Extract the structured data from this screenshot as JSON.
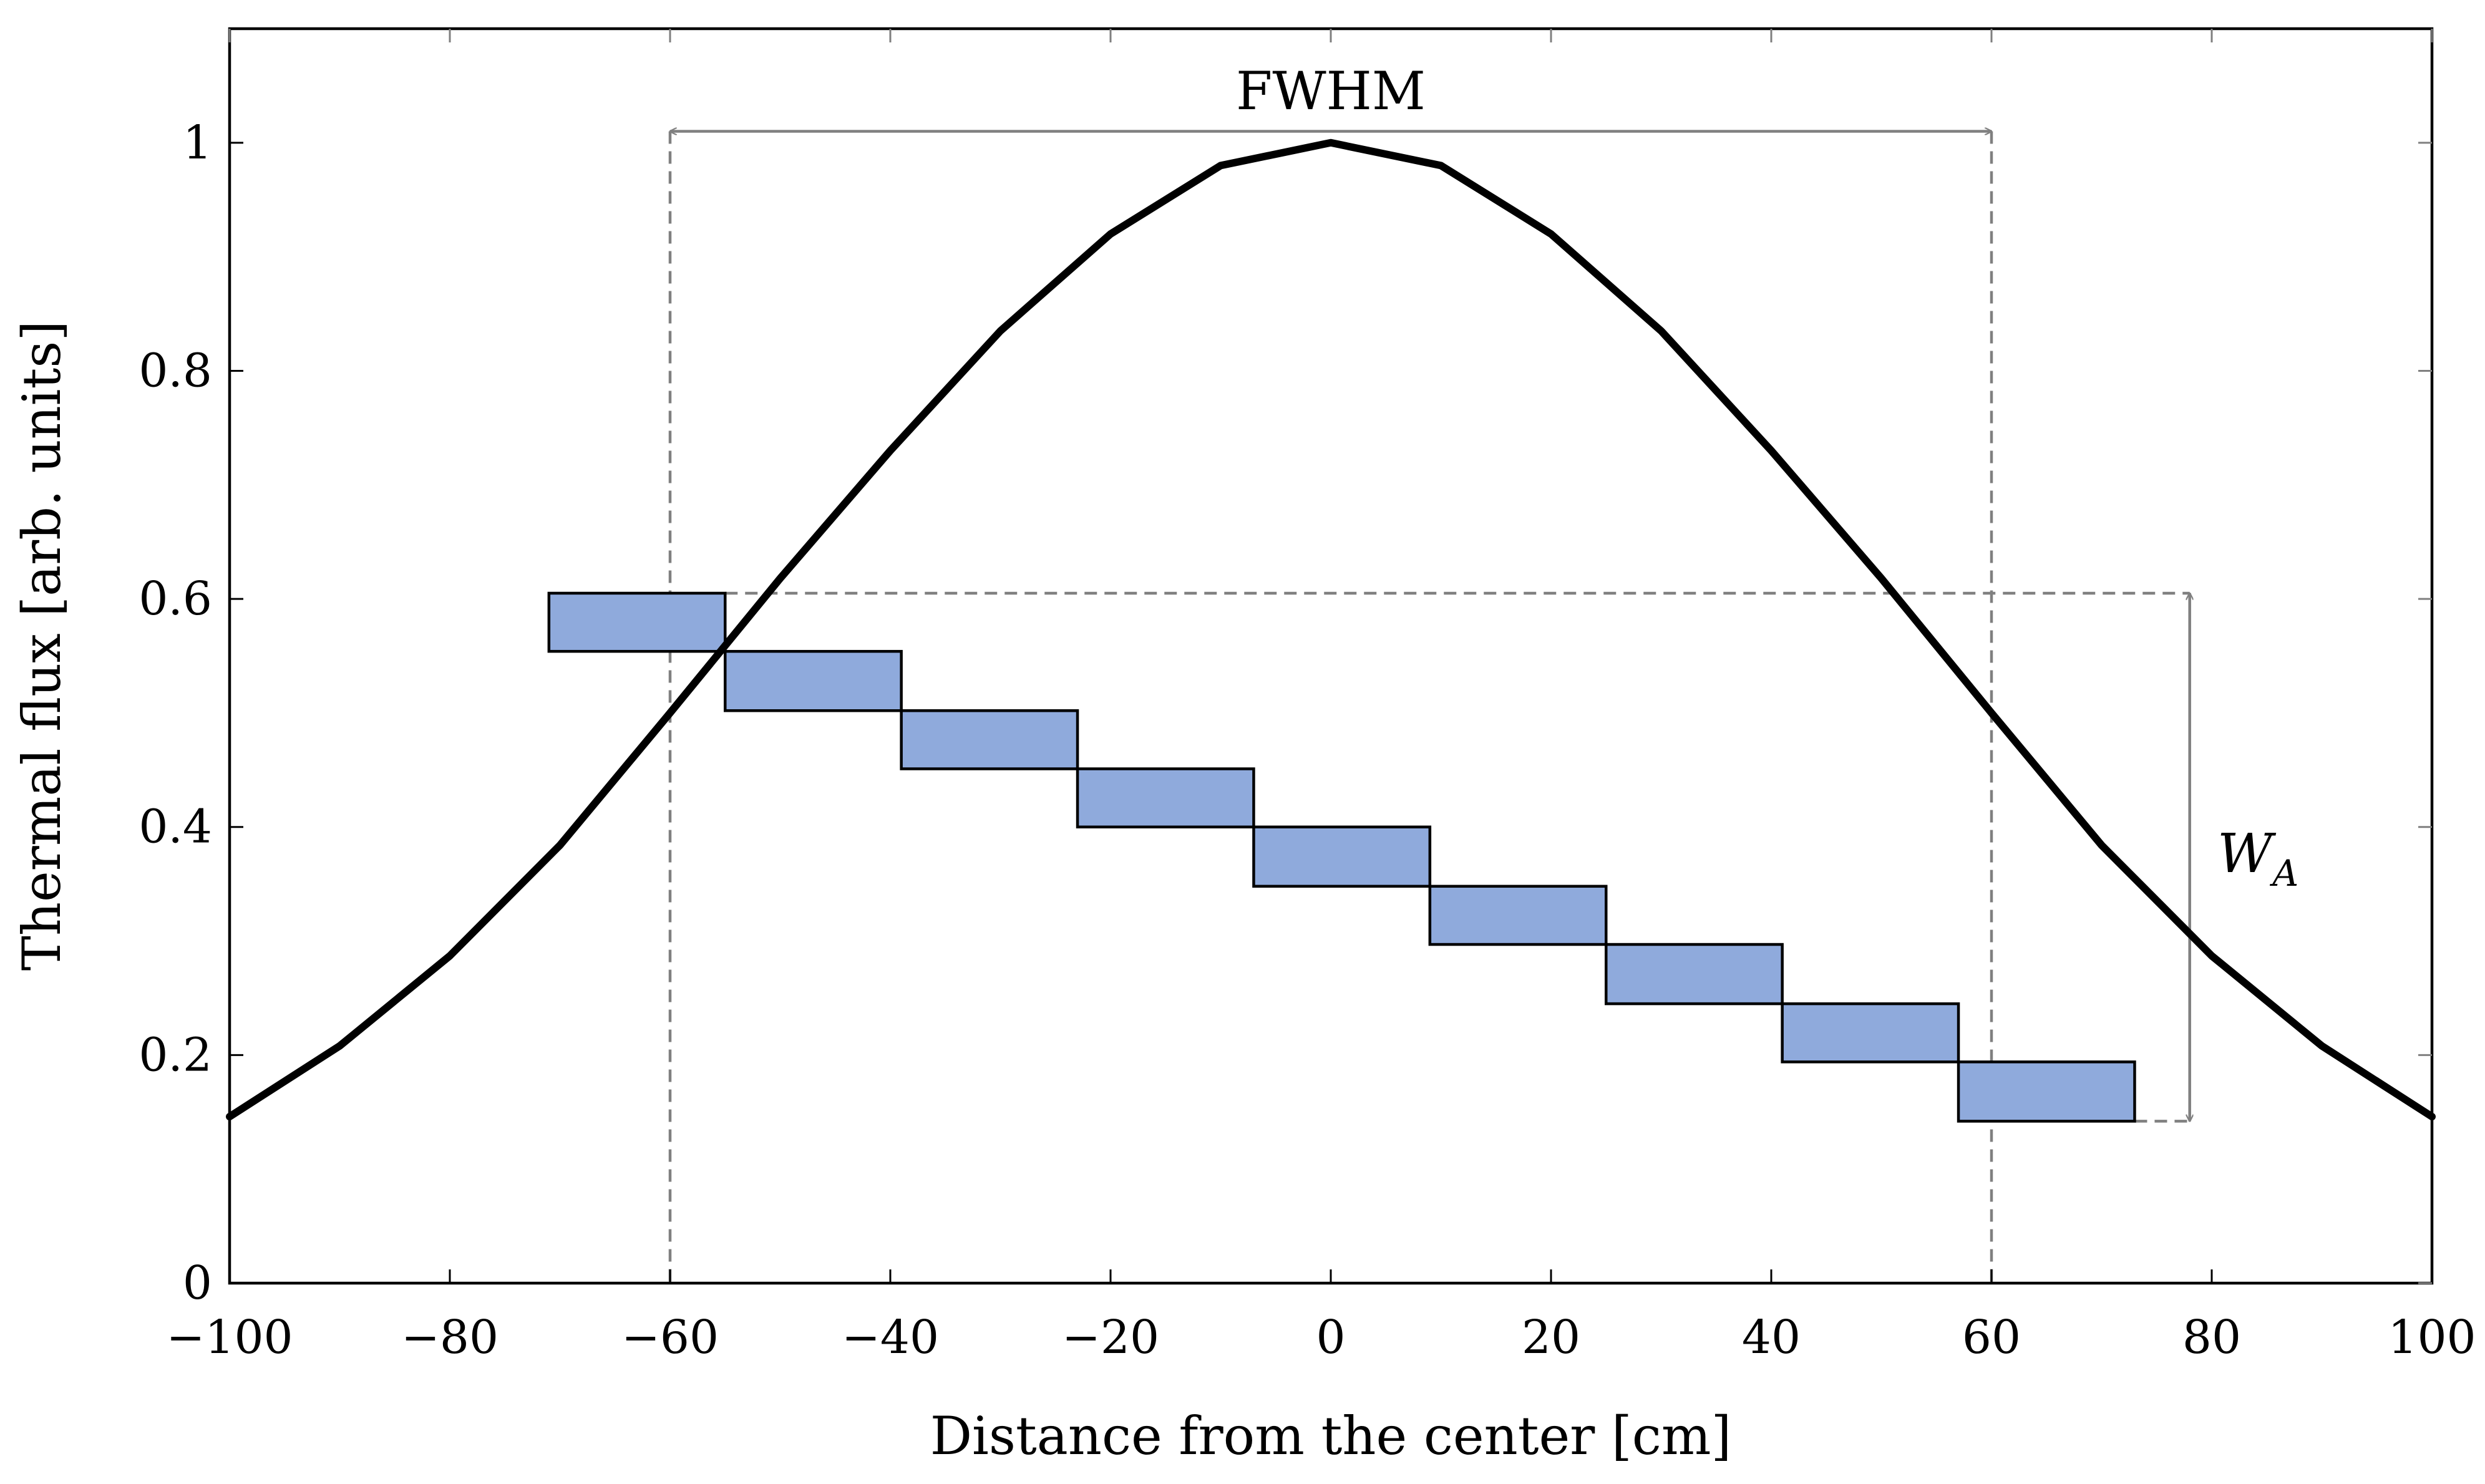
{
  "chart_data": {
    "type": "line",
    "title": "",
    "xlabel": "Distance from the center [cm]",
    "ylabel": "Thermal flux [arb. units]",
    "xlim": [
      -100,
      100
    ],
    "ylim": [
      0,
      1.1
    ],
    "x_ticks": [
      -100,
      -80,
      -60,
      -40,
      -20,
      0,
      20,
      40,
      60,
      80,
      100
    ],
    "x_tick_labels": [
      "−100",
      "−80",
      "−60",
      "−40",
      "−20",
      "0",
      "20",
      "40",
      "60",
      "80",
      "100"
    ],
    "y_ticks": [
      0,
      0.2,
      0.4,
      0.6,
      0.8,
      1
    ],
    "y_tick_labels": [
      "0",
      "0.2",
      "0.4",
      "0.6",
      "0.8",
      "1"
    ],
    "grid": false,
    "series": [
      {
        "name": "Thermal flux profile",
        "color": "#000000",
        "x": [
          -100,
          -90,
          -80,
          -70,
          -60,
          -50,
          -40,
          -30,
          -20,
          -10,
          0,
          10,
          20,
          30,
          40,
          50,
          60,
          70,
          80,
          90,
          100
        ],
        "y": [
          0.146,
          0.208,
          0.287,
          0.384,
          0.5,
          0.618,
          0.73,
          0.835,
          0.92,
          0.98,
          1.0,
          0.98,
          0.92,
          0.835,
          0.73,
          0.618,
          0.5,
          0.384,
          0.287,
          0.208,
          0.146
        ]
      }
    ],
    "bars": {
      "name": "Segments",
      "fill_color": "#8faadc",
      "edge_color": "#000000",
      "items": [
        {
          "x0": -71,
          "x1": -55,
          "y0": 0.554,
          "y1": 0.605
        },
        {
          "x0": -55,
          "x1": -39,
          "y0": 0.502,
          "y1": 0.554
        },
        {
          "x0": -39,
          "x1": -23,
          "y0": 0.451,
          "y1": 0.502
        },
        {
          "x0": -23,
          "x1": -7,
          "y0": 0.4,
          "y1": 0.451
        },
        {
          "x0": -7,
          "x1": 9,
          "y0": 0.348,
          "y1": 0.4
        },
        {
          "x0": 9,
          "x1": 25,
          "y0": 0.297,
          "y1": 0.348
        },
        {
          "x0": 25,
          "x1": 41,
          "y0": 0.245,
          "y1": 0.297
        },
        {
          "x0": 41,
          "x1": 57,
          "y0": 0.194,
          "y1": 0.245
        },
        {
          "x0": 57,
          "x1": 73,
          "y0": 0.142,
          "y1": 0.194
        }
      ]
    },
    "annotations": {
      "fwhm": {
        "label": "FWHM",
        "x_left": -60,
        "x_right": 60,
        "arrow_y": 1.01,
        "color": "#808080"
      },
      "wa": {
        "label": "W",
        "subscript": "A",
        "x": 78,
        "y_top": 0.605,
        "y_bottom": 0.142,
        "color": "#808080"
      }
    }
  }
}
